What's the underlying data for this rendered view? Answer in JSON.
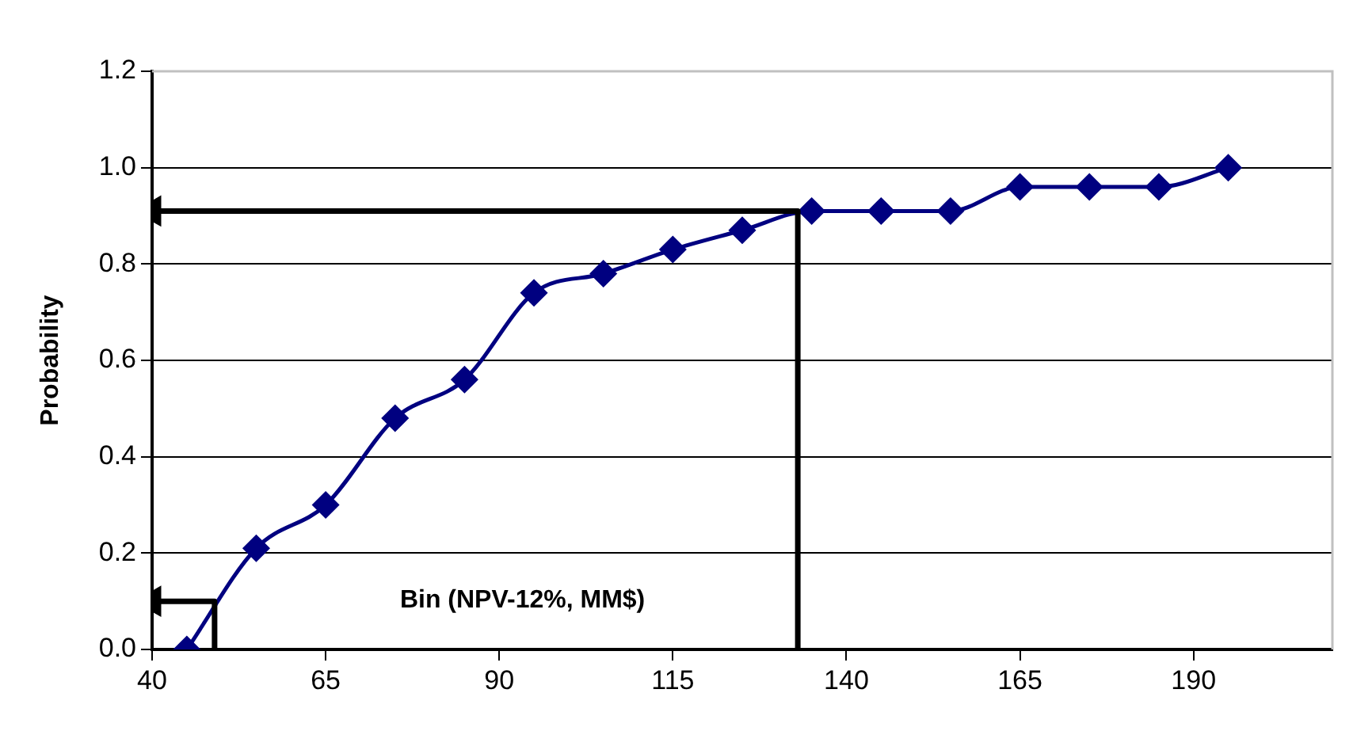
{
  "chart_data": {
    "type": "line",
    "xlabel": "Bin (NPV-12%, MM$)",
    "ylabel": "Probability",
    "xlim": [
      40,
      210
    ],
    "xticks": [
      40,
      65,
      90,
      115,
      140,
      165,
      190
    ],
    "ylim": [
      0,
      1.2
    ],
    "yticks": [
      {
        "value": 0,
        "label": "0.0"
      },
      {
        "value": 0.2,
        "label": "0.2"
      },
      {
        "value": 0.4,
        "label": "0.4"
      },
      {
        "value": 0.6,
        "label": "0.6"
      },
      {
        "value": 0.8,
        "label": "0.8"
      },
      {
        "value": 1,
        "label": "1.0"
      },
      {
        "value": 1.2,
        "label": "1.2"
      }
    ],
    "grid": "y",
    "legend": false,
    "marker": "diamond",
    "series": [
      {
        "color": "#000080",
        "x": [
          45,
          55,
          65,
          75,
          85,
          95,
          105,
          115,
          125,
          135,
          145,
          155,
          165,
          175,
          185,
          195
        ],
        "values": [
          0,
          0.21,
          0.3,
          0.48,
          0.56,
          0.74,
          0.78,
          0.83,
          0.87,
          0.91,
          0.91,
          0.91,
          0.96,
          0.96,
          0.96,
          1.0
        ]
      },
      {
        "type": "line",
        "marker": "none",
        "color": "#000000",
        "x": [
          40,
          49,
          49
        ],
        "values": [
          0.1,
          0.1,
          0
        ]
      },
      {
        "type": "line",
        "marker": "none",
        "color": "#000000",
        "x": [
          40,
          133,
          133
        ],
        "values": [
          0.91,
          0.91,
          0
        ]
      }
    ]
  }
}
